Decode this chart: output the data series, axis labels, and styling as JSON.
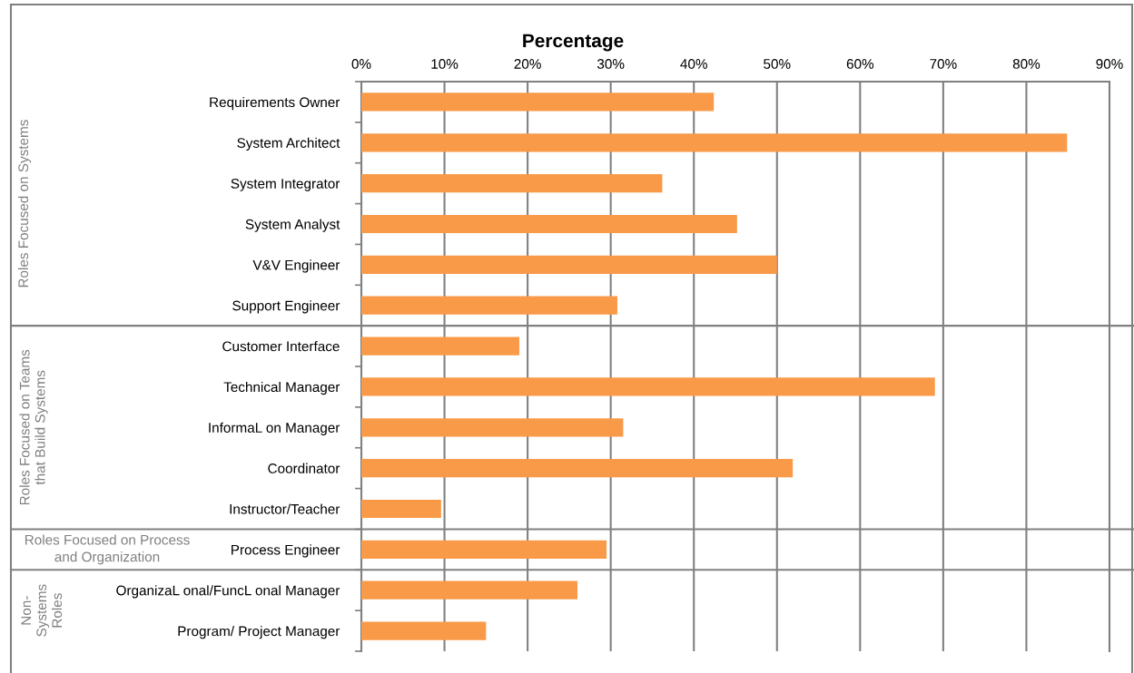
{
  "chart_data": {
    "type": "bar",
    "orientation": "horizontal",
    "xlabel": "Percentage",
    "categories": [
      "Requirements Owner",
      "System Architect",
      "System Integrator",
      "System Analyst",
      "V&V Engineer",
      "Support Engineer",
      "Customer Interface",
      "Technical Manager",
      "InformaL on Manager",
      "Coordinator",
      "Instructor/Teacher",
      "Process Engineer",
      "OrganizaL onal/FuncL onal Manager",
      "Program/ Project Manager"
    ],
    "values": [
      42.4,
      84.9,
      36.2,
      45.2,
      50.0,
      30.8,
      19.0,
      69.0,
      31.5,
      51.9,
      9.6,
      29.5,
      26.0,
      15.0
    ],
    "color": "#f99a48",
    "xlim": [
      0,
      90
    ],
    "xticks": [
      {
        "value": 0,
        "label": "0%"
      },
      {
        "value": 10,
        "label": "10%"
      },
      {
        "value": 20,
        "label": "20%"
      },
      {
        "value": 30,
        "label": "30%"
      },
      {
        "value": 40,
        "label": "40%"
      },
      {
        "value": 50,
        "label": "50%"
      },
      {
        "value": 60,
        "label": "60%"
      },
      {
        "value": 70,
        "label": "70%"
      },
      {
        "value": 80,
        "label": "80%"
      },
      {
        "value": 90,
        "label": "90%"
      }
    ],
    "grid": "x",
    "annotations": [
      "Roles Focused on Systems",
      "Roles Focused on Teams\nthat Build Systems",
      "Roles Focused on Process\nand Organization",
      "Non-\nSystems\nRoles"
    ]
  }
}
